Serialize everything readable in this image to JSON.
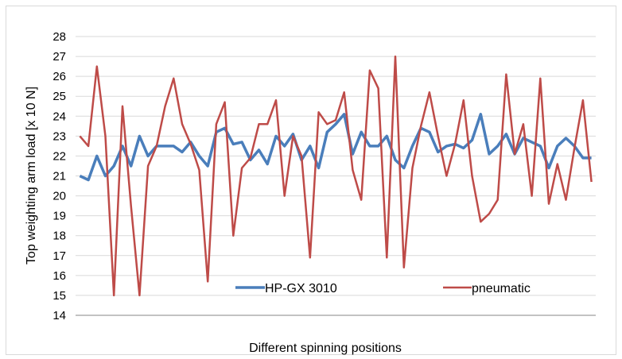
{
  "chart_data": {
    "type": "line",
    "title": "",
    "xlabel": "Different spinning positions",
    "ylabel": "Top weighting arm load [x 10 N]",
    "ylim": [
      14,
      28
    ],
    "yticks": [
      14,
      15,
      16,
      17,
      18,
      19,
      20,
      21,
      22,
      23,
      24,
      25,
      26,
      27,
      28
    ],
    "grid": true,
    "legend_position": "inside-bottom-center",
    "series": [
      {
        "name": "HP-GX 3010",
        "color": "#4a7ebb",
        "values": [
          21.0,
          20.8,
          22.0,
          21.0,
          21.5,
          22.5,
          21.5,
          23.0,
          22.0,
          22.5,
          22.5,
          22.5,
          22.2,
          22.7,
          22.0,
          21.5,
          23.2,
          23.4,
          22.6,
          22.7,
          21.8,
          22.3,
          21.6,
          23.0,
          22.5,
          23.1,
          21.8,
          22.5,
          21.4,
          23.2,
          23.6,
          24.1,
          22.1,
          23.2,
          22.5,
          22.5,
          23.0,
          21.8,
          21.4,
          22.5,
          23.4,
          23.2,
          22.2,
          22.5,
          22.6,
          22.4,
          22.8,
          24.1,
          22.1,
          22.5,
          23.1,
          22.1,
          22.9,
          22.7,
          22.5,
          21.4,
          22.5,
          22.9,
          22.5,
          21.9,
          21.9
        ]
      },
      {
        "name": "pneumatic",
        "color": "#be4b48",
        "values": [
          23.0,
          22.5,
          26.5,
          23.0,
          15.0,
          24.5,
          19.5,
          15.0,
          21.5,
          22.5,
          24.5,
          25.9,
          23.6,
          22.6,
          21.3,
          15.7,
          23.6,
          24.7,
          18.0,
          21.4,
          21.9,
          23.6,
          23.6,
          24.8,
          20.0,
          23.0,
          22.0,
          16.9,
          24.2,
          23.6,
          23.8,
          25.2,
          21.3,
          19.8,
          26.3,
          25.4,
          16.9,
          27.0,
          16.4,
          21.4,
          23.5,
          25.2,
          23.0,
          21.0,
          22.6,
          24.8,
          21.0,
          18.7,
          19.1,
          19.8,
          26.1,
          22.1,
          23.6,
          20.0,
          25.9,
          19.6,
          21.6,
          19.8,
          22.4,
          24.8,
          20.7
        ]
      }
    ]
  }
}
